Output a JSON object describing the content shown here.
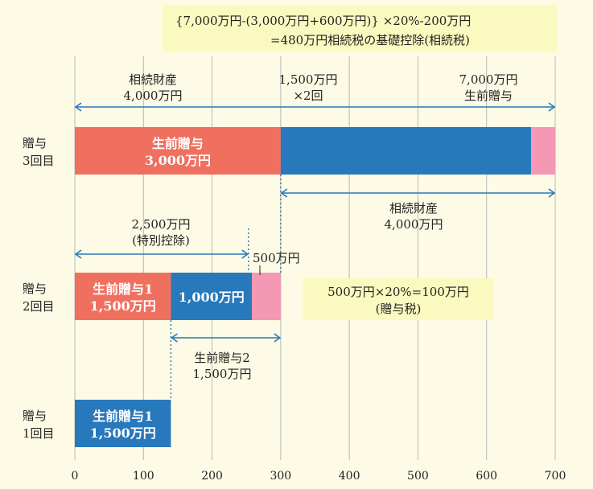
{
  "colors": {
    "background": "#fdfbe5",
    "gift_red": "#f07060",
    "inherit_blue": "#2878bc",
    "tax_pink": "#f598b4",
    "arrow": "#2878bc",
    "note_box": "#fafac0",
    "grid": "#b8b8b8",
    "dotted": "#2878bc"
  },
  "formula": {
    "line1": "{7,000万円-(3,000万円+600万円)} ×20%-200万円",
    "line2": "=480万円相続税の基礎控除(相続税)"
  },
  "annotations": {
    "top_left_1": "相続財産",
    "top_left_2": "4,000万円",
    "top_mid_1": "1,500万円",
    "top_mid_2": "×2回",
    "top_right_1": "7,000万円",
    "top_right_2": "生前贈与",
    "inherit_1": "相続財産",
    "inherit_2": "4,000万円",
    "special_1": "2,500万円",
    "special_2": "(特別控除)",
    "five_hundred": "500万円",
    "gift_tax_1": "500万円×20%=100万円",
    "gift_tax_2": "(贈与税)",
    "gift2_1": "生前贈与2",
    "gift2_2": "1,500万円"
  },
  "chart_data": {
    "type": "bar",
    "orientation": "horizontal",
    "stacked": true,
    "xlim": [
      0,
      700
    ],
    "x_ticks": [
      0,
      100,
      200,
      300,
      400,
      500,
      600,
      700
    ],
    "grid": true,
    "rows": [
      {
        "label_1": "贈与",
        "label_2": "3回目",
        "segments": [
          {
            "start": 0,
            "end": 300,
            "color": "#f07060",
            "text_1": "生前贈与",
            "text_2": "3,000万円"
          },
          {
            "start": 300,
            "end": 665,
            "color": "#2878bc",
            "text_1": "",
            "text_2": ""
          },
          {
            "start": 665,
            "end": 700,
            "color": "#f598b4",
            "text_1": "",
            "text_2": ""
          }
        ]
      },
      {
        "label_1": "贈与",
        "label_2": "2回目",
        "segments": [
          {
            "start": 0,
            "end": 140,
            "color": "#f07060",
            "text_1": "生前贈与1",
            "text_2": "1,500万円"
          },
          {
            "start": 140,
            "end": 258,
            "color": "#2878bc",
            "text_1": "1,000万円",
            "text_2": ""
          },
          {
            "start": 258,
            "end": 300,
            "color": "#f598b4",
            "text_1": "",
            "text_2": ""
          }
        ]
      },
      {
        "label_1": "贈与",
        "label_2": "1回目",
        "segments": [
          {
            "start": 0,
            "end": 140,
            "color": "#2878bc",
            "text_1": "生前贈与1",
            "text_2": "1,500万円"
          }
        ]
      }
    ]
  }
}
